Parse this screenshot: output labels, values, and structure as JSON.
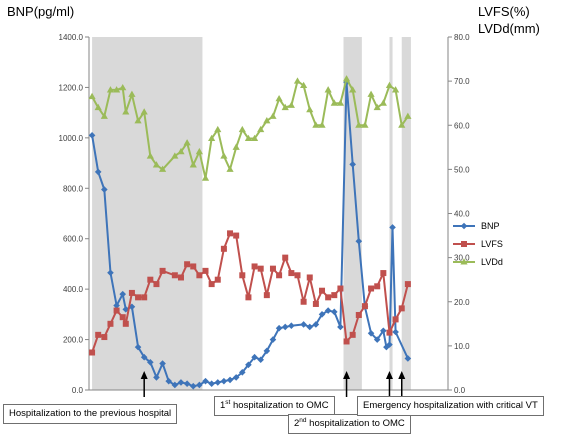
{
  "chart_data": {
    "type": "line",
    "left_axis_title": "BNP(pg/ml)",
    "right_axis_title_line1": "LVFS(%)",
    "right_axis_title_line2": "LVDd(mm)",
    "y_left": {
      "min": 0,
      "max": 1400,
      "step": 200,
      "tick_labels": [
        "0.0",
        "200.0",
        "400.0",
        "600.0",
        "800.0",
        "1000.0",
        "1200.0",
        "1400.0"
      ]
    },
    "y_right": {
      "min": 0,
      "max": 80,
      "step": 10,
      "tick_labels": [
        "0.0",
        "10.0",
        "20.0",
        "30.0",
        "40.0",
        "50.0",
        "60.0",
        "70.0",
        "80.0"
      ]
    },
    "grid": false,
    "shaded_regions": [
      [
        1,
        37
      ],
      [
        83,
        89
      ],
      [
        98,
        99
      ],
      [
        102,
        105
      ]
    ],
    "series": [
      {
        "name": "BNP",
        "axis": "left",
        "color": "#3e74b9",
        "marker": "diamond",
        "points": [
          [
            1,
            1010
          ],
          [
            3,
            865
          ],
          [
            5,
            795
          ],
          [
            7,
            465
          ],
          [
            9,
            335
          ],
          [
            11,
            380
          ],
          [
            12,
            320
          ],
          [
            14,
            330
          ],
          [
            16,
            170
          ],
          [
            18,
            130
          ],
          [
            20,
            110
          ],
          [
            22,
            50
          ],
          [
            24,
            105
          ],
          [
            26,
            35
          ],
          [
            28,
            20
          ],
          [
            30,
            30
          ],
          [
            32,
            25
          ],
          [
            34,
            15
          ],
          [
            36,
            20
          ],
          [
            38,
            35
          ],
          [
            40,
            25
          ],
          [
            42,
            30
          ],
          [
            44,
            35
          ],
          [
            46,
            40
          ],
          [
            48,
            50
          ],
          [
            50,
            70
          ],
          [
            52,
            100
          ],
          [
            54,
            130
          ],
          [
            56,
            120
          ],
          [
            58,
            155
          ],
          [
            60,
            200
          ],
          [
            62,
            245
          ],
          [
            64,
            250
          ],
          [
            66,
            255
          ],
          [
            70,
            260
          ],
          [
            72,
            250
          ],
          [
            74,
            260
          ],
          [
            76,
            300
          ],
          [
            78,
            315
          ],
          [
            80,
            310
          ],
          [
            82,
            250
          ],
          [
            84,
            1220
          ],
          [
            86,
            895
          ],
          [
            88,
            590
          ],
          [
            90,
            330
          ],
          [
            92,
            225
          ],
          [
            94,
            200
          ],
          [
            96,
            235
          ],
          [
            97,
            170
          ],
          [
            98,
            180
          ],
          [
            99,
            645
          ],
          [
            100,
            230
          ],
          [
            104,
            125
          ]
        ]
      },
      {
        "name": "LVFS",
        "axis": "right",
        "color": "#c0504d",
        "marker": "square",
        "points": [
          [
            1,
            8.5
          ],
          [
            3,
            12.5
          ],
          [
            5,
            12
          ],
          [
            7,
            15
          ],
          [
            9,
            18
          ],
          [
            11,
            16.5
          ],
          [
            12,
            15
          ],
          [
            14,
            22
          ],
          [
            16,
            21
          ],
          [
            18,
            21
          ],
          [
            20,
            25
          ],
          [
            22,
            24
          ],
          [
            24,
            27
          ],
          [
            28,
            26
          ],
          [
            30,
            25.5
          ],
          [
            32,
            28.5
          ],
          [
            34,
            28
          ],
          [
            36,
            26
          ],
          [
            38,
            27
          ],
          [
            40,
            24
          ],
          [
            42,
            25
          ],
          [
            44,
            32
          ],
          [
            46,
            35.5
          ],
          [
            48,
            35
          ],
          [
            50,
            26
          ],
          [
            52,
            21
          ],
          [
            54,
            28
          ],
          [
            56,
            27.5
          ],
          [
            58,
            21.5
          ],
          [
            60,
            27.5
          ],
          [
            62,
            26
          ],
          [
            64,
            30
          ],
          [
            66,
            26.5
          ],
          [
            68,
            26
          ],
          [
            70,
            20
          ],
          [
            72,
            25.5
          ],
          [
            74,
            19.5
          ],
          [
            76,
            22.5
          ],
          [
            78,
            21
          ],
          [
            80,
            21.5
          ],
          [
            82,
            23
          ],
          [
            84,
            11
          ],
          [
            86,
            12.5
          ],
          [
            88,
            17
          ],
          [
            90,
            19
          ],
          [
            92,
            23
          ],
          [
            94,
            23.5
          ],
          [
            96,
            26.5
          ],
          [
            98,
            13
          ],
          [
            100,
            16
          ],
          [
            102,
            18.5
          ],
          [
            104,
            24
          ]
        ]
      },
      {
        "name": "LVDd",
        "axis": "right",
        "color": "#9bbb59",
        "marker": "triangle",
        "points": [
          [
            1,
            66.5
          ],
          [
            3,
            64
          ],
          [
            5,
            62
          ],
          [
            7,
            68
          ],
          [
            9,
            68
          ],
          [
            11,
            68.5
          ],
          [
            12,
            63
          ],
          [
            14,
            67
          ],
          [
            16,
            61
          ],
          [
            18,
            63
          ],
          [
            20,
            53
          ],
          [
            22,
            51
          ],
          [
            24,
            50
          ],
          [
            28,
            53
          ],
          [
            30,
            54
          ],
          [
            32,
            56
          ],
          [
            34,
            51
          ],
          [
            36,
            54
          ],
          [
            38,
            48
          ],
          [
            40,
            57
          ],
          [
            42,
            59
          ],
          [
            44,
            53
          ],
          [
            46,
            50
          ],
          [
            48,
            55
          ],
          [
            50,
            59
          ],
          [
            52,
            57
          ],
          [
            54,
            57
          ],
          [
            56,
            59
          ],
          [
            58,
            61
          ],
          [
            60,
            62
          ],
          [
            62,
            66
          ],
          [
            64,
            64
          ],
          [
            66,
            64.5
          ],
          [
            68,
            70
          ],
          [
            70,
            69
          ],
          [
            72,
            63.5
          ],
          [
            74,
            60
          ],
          [
            76,
            60
          ],
          [
            78,
            68
          ],
          [
            80,
            65
          ],
          [
            82,
            65
          ],
          [
            84,
            70.5
          ],
          [
            86,
            68
          ],
          [
            88,
            60
          ],
          [
            90,
            60
          ],
          [
            92,
            67
          ],
          [
            94,
            64
          ],
          [
            96,
            65
          ],
          [
            98,
            69
          ],
          [
            100,
            68
          ],
          [
            102,
            60
          ],
          [
            104,
            62
          ]
        ]
      }
    ],
    "x_range": [
      0,
      106
    ],
    "legend": {
      "position": "right",
      "items": [
        {
          "label": "BNP",
          "series": 0
        },
        {
          "label": "LVFS",
          "series": 1
        },
        {
          "label": "LVDd",
          "series": 2
        }
      ]
    },
    "annotations": [
      {
        "id": "prev",
        "text": "Hospitalization to the previous hospital",
        "at": 18
      },
      {
        "id": "omc1",
        "text_sup": "st",
        "text_pre": "1",
        "text_post": " hospitalization to OMC",
        "at": 84
      },
      {
        "id": "omc2",
        "text_sup": "nd",
        "text_pre": "2",
        "text_post": " hospitalization to OMC",
        "at": 98
      },
      {
        "id": "vt",
        "text": "Emergency hospitalization with critical VT",
        "at": 102
      }
    ]
  }
}
